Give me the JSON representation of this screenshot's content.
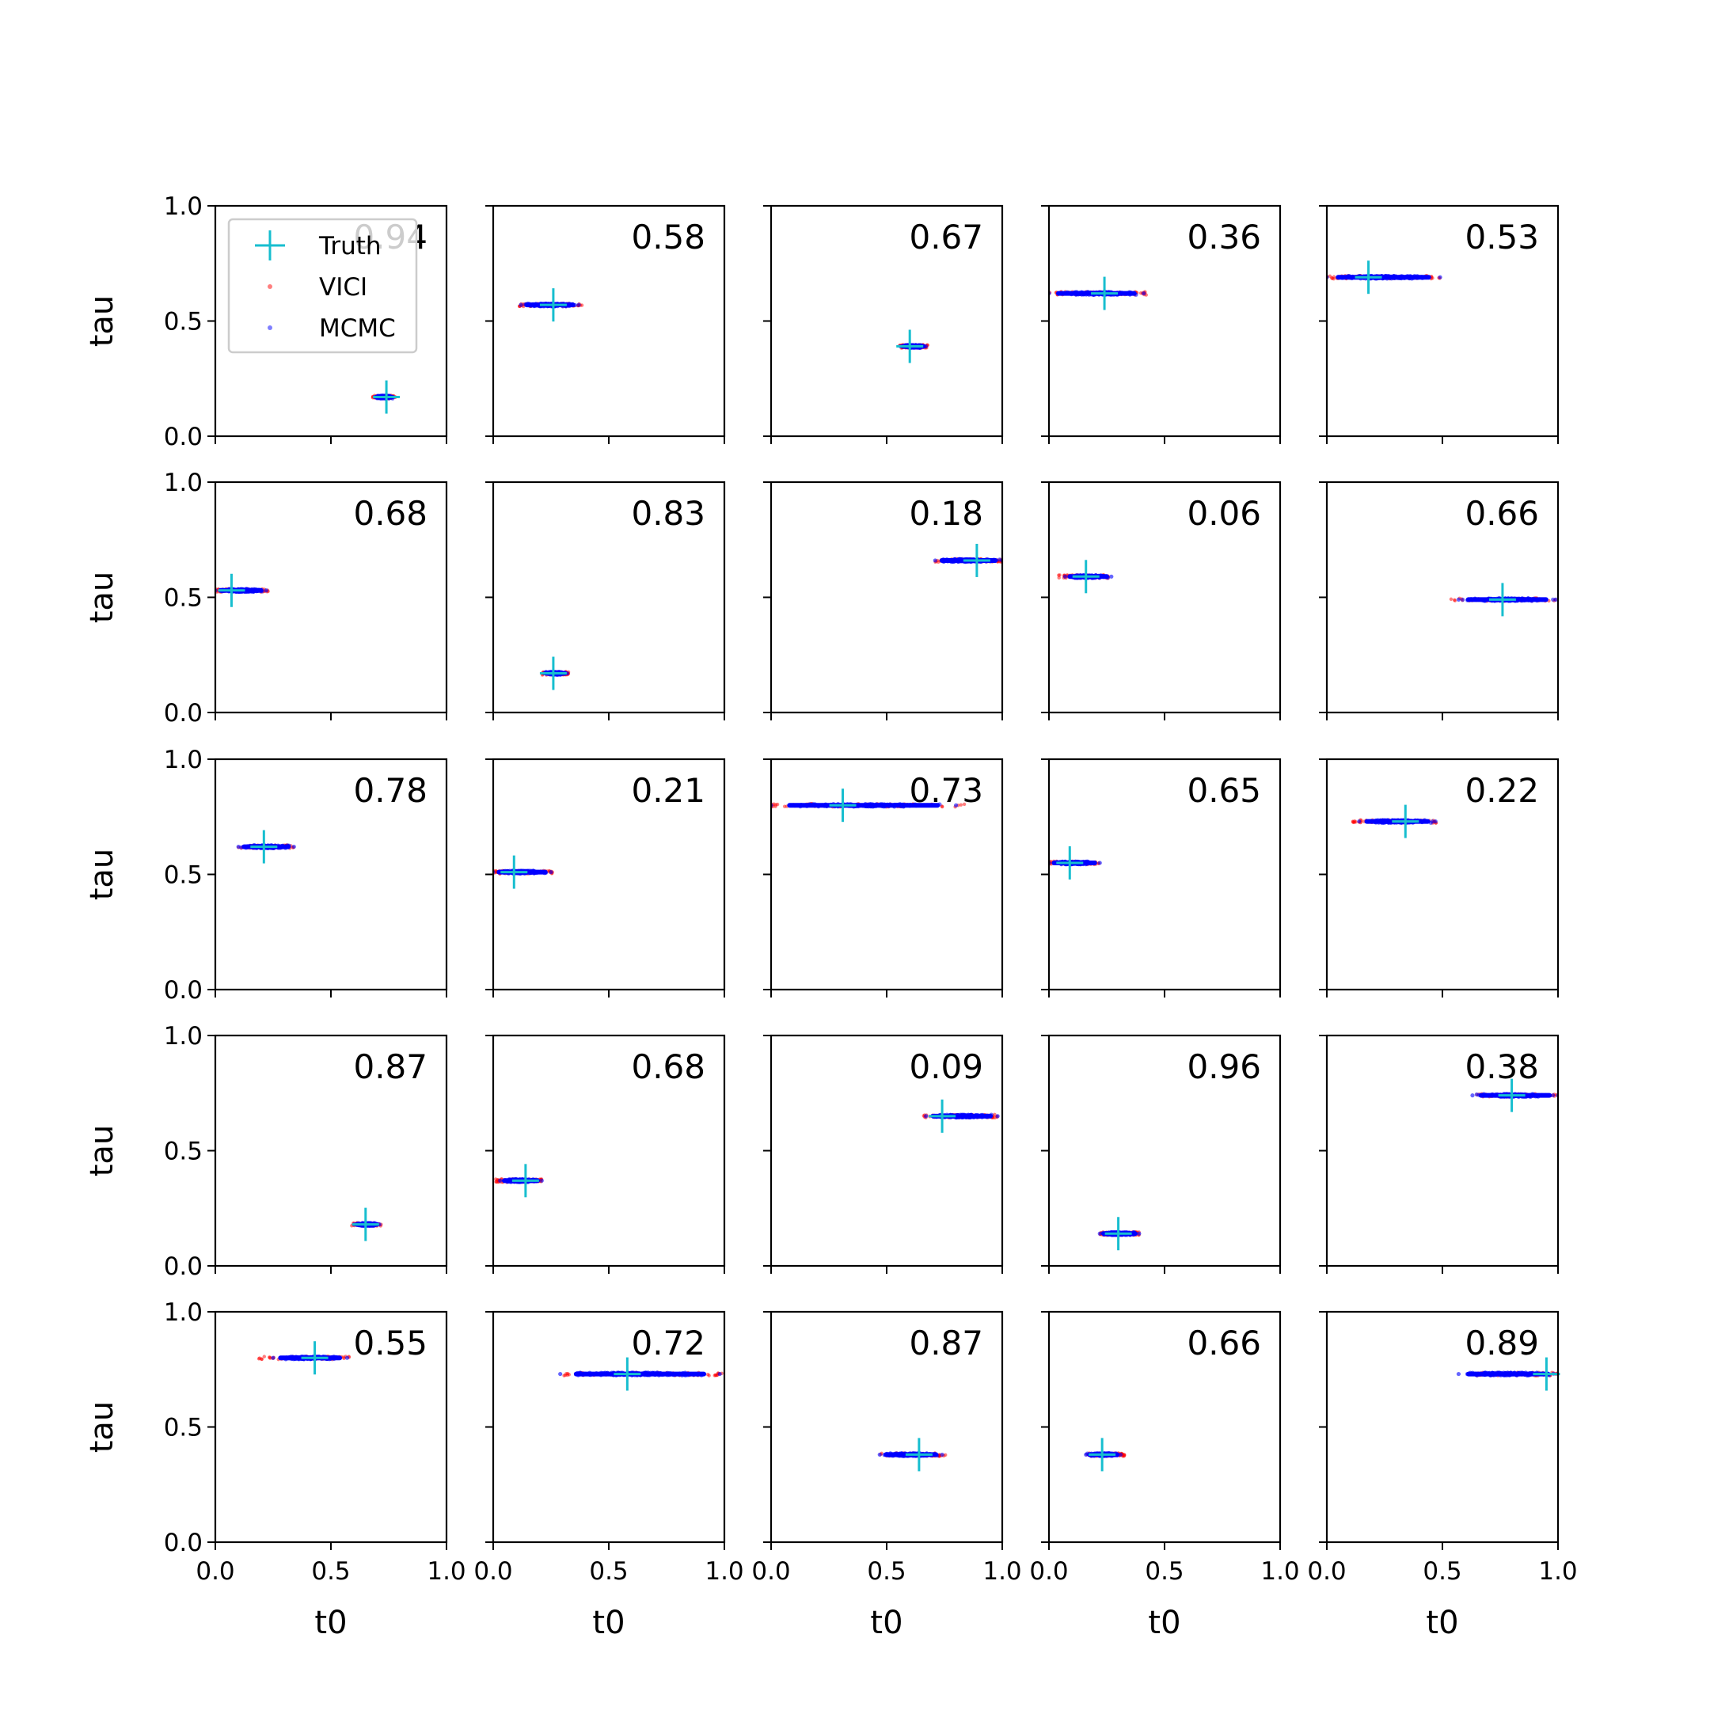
{
  "chart_data": {
    "type": "scatter",
    "layout": "5x5 grid of scatter subplots",
    "xlabel": "t0",
    "ylabel": "tau",
    "xlim": [
      0,
      1
    ],
    "ylim": [
      0,
      1
    ],
    "xticks": [
      "0.0",
      "0.5",
      "1.0"
    ],
    "yticks": [
      "0.0",
      "0.5",
      "1.0"
    ],
    "grid": false,
    "legend": {
      "placement": "upper-left of first subplot",
      "entries": [
        {
          "label": "Truth",
          "marker": "plus",
          "color": "#17becf"
        },
        {
          "label": "VICI",
          "marker": "dot",
          "color": "#ff0000"
        },
        {
          "label": "MCMC",
          "marker": "dot",
          "color": "#0000ff"
        }
      ]
    },
    "colors": {
      "truth": "#17becf",
      "vici": "#ff0000",
      "mcmc": "#0000ff",
      "axes": "#000000"
    },
    "panels": [
      {
        "label": "0.94",
        "truth": [
          0.74,
          0.17
        ],
        "vici": {
          "x": [
            0.68,
            0.78
          ],
          "y": 0.17
        },
        "mcmc": {
          "x": [
            0.69,
            0.77
          ],
          "y": 0.17
        }
      },
      {
        "label": "0.58",
        "truth": [
          0.26,
          0.57
        ],
        "vici": {
          "x": [
            0.11,
            0.39
          ],
          "y": 0.57
        },
        "mcmc": {
          "x": [
            0.12,
            0.37
          ],
          "y": 0.57
        }
      },
      {
        "label": "0.67",
        "truth": [
          0.6,
          0.39
        ],
        "vici": {
          "x": [
            0.55,
            0.68
          ],
          "y": 0.39
        },
        "mcmc": {
          "x": [
            0.56,
            0.67
          ],
          "y": 0.39
        }
      },
      {
        "label": "0.36",
        "truth": [
          0.24,
          0.62
        ],
        "vici": {
          "x": [
            0.0,
            0.43
          ],
          "y": 0.62
        },
        "mcmc": {
          "x": [
            0.0,
            0.41
          ],
          "y": 0.62
        }
      },
      {
        "label": "0.53",
        "truth": [
          0.18,
          0.69
        ],
        "vici": {
          "x": [
            0.0,
            0.5
          ],
          "y": 0.69
        },
        "mcmc": {
          "x": [
            0.0,
            0.49
          ],
          "y": 0.69
        }
      },
      {
        "label": "0.68",
        "truth": [
          0.07,
          0.53
        ],
        "vici": {
          "x": [
            0.0,
            0.23
          ],
          "y": 0.53
        },
        "mcmc": {
          "x": [
            0.0,
            0.22
          ],
          "y": 0.53
        }
      },
      {
        "label": "0.83",
        "truth": [
          0.26,
          0.17
        ],
        "vici": {
          "x": [
            0.21,
            0.33
          ],
          "y": 0.17
        },
        "mcmc": {
          "x": [
            0.22,
            0.32
          ],
          "y": 0.17
        }
      },
      {
        "label": "0.18",
        "truth": [
          0.89,
          0.66
        ],
        "vici": {
          "x": [
            0.7,
            1.0
          ],
          "y": 0.66
        },
        "mcmc": {
          "x": [
            0.71,
            1.0
          ],
          "y": 0.66
        }
      },
      {
        "label": "0.06",
        "truth": [
          0.16,
          0.59
        ],
        "vici": {
          "x": [
            0.04,
            0.27
          ],
          "y": 0.59
        },
        "mcmc": {
          "x": [
            0.07,
            0.27
          ],
          "y": 0.59
        }
      },
      {
        "label": "0.66",
        "truth": [
          0.76,
          0.49
        ],
        "vici": {
          "x": [
            0.52,
            0.99
          ],
          "y": 0.49
        },
        "mcmc": {
          "x": [
            0.57,
            0.99
          ],
          "y": 0.49
        }
      },
      {
        "label": "0.78",
        "truth": [
          0.21,
          0.62
        ],
        "vici": {
          "x": [
            0.1,
            0.34
          ],
          "y": 0.62
        },
        "mcmc": {
          "x": [
            0.1,
            0.34
          ],
          "y": 0.62
        }
      },
      {
        "label": "0.21",
        "truth": [
          0.09,
          0.51
        ],
        "vici": {
          "x": [
            0.0,
            0.26
          ],
          "y": 0.51
        },
        "mcmc": {
          "x": [
            0.0,
            0.25
          ],
          "y": 0.51
        }
      },
      {
        "label": "0.73",
        "truth": [
          0.31,
          0.8
        ],
        "vici": {
          "x": [
            0.0,
            0.84
          ],
          "y": 0.8
        },
        "mcmc": {
          "x": [
            0.0,
            0.8
          ],
          "y": 0.8
        }
      },
      {
        "label": "0.65",
        "truth": [
          0.09,
          0.55
        ],
        "vici": {
          "x": [
            0.0,
            0.22
          ],
          "y": 0.55
        },
        "mcmc": {
          "x": [
            0.0,
            0.22
          ],
          "y": 0.55
        }
      },
      {
        "label": "0.22",
        "truth": [
          0.34,
          0.73
        ],
        "vici": {
          "x": [
            0.11,
            0.48
          ],
          "y": 0.73
        },
        "mcmc": {
          "x": [
            0.14,
            0.47
          ],
          "y": 0.73
        }
      },
      {
        "label": "0.87",
        "truth": [
          0.65,
          0.18
        ],
        "vici": {
          "x": [
            0.59,
            0.72
          ],
          "y": 0.18
        },
        "mcmc": {
          "x": [
            0.6,
            0.71
          ],
          "y": 0.18
        }
      },
      {
        "label": "0.68",
        "truth": [
          0.14,
          0.37
        ],
        "vici": {
          "x": [
            0.01,
            0.21
          ],
          "y": 0.37
        },
        "mcmc": {
          "x": [
            0.03,
            0.21
          ],
          "y": 0.37
        }
      },
      {
        "label": "0.09",
        "truth": [
          0.74,
          0.65
        ],
        "vici": {
          "x": [
            0.66,
            0.98
          ],
          "y": 0.65
        },
        "mcmc": {
          "x": [
            0.67,
            0.98
          ],
          "y": 0.65
        }
      },
      {
        "label": "0.96",
        "truth": [
          0.3,
          0.14
        ],
        "vici": {
          "x": [
            0.22,
            0.39
          ],
          "y": 0.14
        },
        "mcmc": {
          "x": [
            0.22,
            0.39
          ],
          "y": 0.14
        }
      },
      {
        "label": "0.38",
        "truth": [
          0.8,
          0.74
        ],
        "vici": {
          "x": [
            0.63,
            1.0
          ],
          "y": 0.74
        },
        "mcmc": {
          "x": [
            0.63,
            1.0
          ],
          "y": 0.74
        }
      },
      {
        "label": "0.55",
        "truth": [
          0.43,
          0.8
        ],
        "vici": {
          "x": [
            0.18,
            0.59
          ],
          "y": 0.8
        },
        "mcmc": {
          "x": [
            0.25,
            0.57
          ],
          "y": 0.8
        }
      },
      {
        "label": "0.72",
        "truth": [
          0.58,
          0.73
        ],
        "vici": {
          "x": [
            0.3,
            0.99
          ],
          "y": 0.73
        },
        "mcmc": {
          "x": [
            0.29,
            0.98
          ],
          "y": 0.73
        }
      },
      {
        "label": "0.87",
        "truth": [
          0.64,
          0.38
        ],
        "vici": {
          "x": [
            0.47,
            0.76
          ],
          "y": 0.38
        },
        "mcmc": {
          "x": [
            0.47,
            0.74
          ],
          "y": 0.38
        }
      },
      {
        "label": "0.66",
        "truth": [
          0.23,
          0.38
        ],
        "vici": {
          "x": [
            0.16,
            0.33
          ],
          "y": 0.38
        },
        "mcmc": {
          "x": [
            0.16,
            0.31
          ],
          "y": 0.38
        }
      },
      {
        "label": "0.89",
        "truth": [
          0.95,
          0.73
        ],
        "vici": {
          "x": [
            0.64,
            1.0
          ],
          "y": 0.73
        },
        "mcmc": {
          "x": [
            0.57,
            1.0
          ],
          "y": 0.73
        }
      }
    ]
  }
}
